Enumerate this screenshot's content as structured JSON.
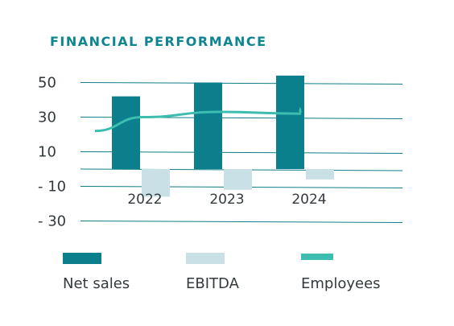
{
  "chart_data": {
    "type": "bar",
    "title": "FINANCIAL PERFORMANCE",
    "categories": [
      "2022",
      "2023",
      "2024"
    ],
    "ylim": [
      -30,
      60
    ],
    "yticks": [
      50,
      30,
      10,
      -10,
      -30
    ],
    "ytick_labels": [
      "50",
      "30",
      "10",
      "- 10",
      "- 30"
    ],
    "grid": true,
    "legend_position": "bottom",
    "series": [
      {
        "name": "Net sales",
        "kind": "bar",
        "color": "#0b7f8b",
        "values": [
          42,
          50,
          54
        ]
      },
      {
        "name": "EBITDA",
        "kind": "bar",
        "color": "#c9e1e6",
        "values": [
          -16,
          -12,
          -6
        ]
      },
      {
        "name": "Employees",
        "kind": "line",
        "color": "#3dbdb0",
        "values": [
          30,
          33,
          32
        ],
        "start": 22,
        "end": 35
      }
    ]
  }
}
